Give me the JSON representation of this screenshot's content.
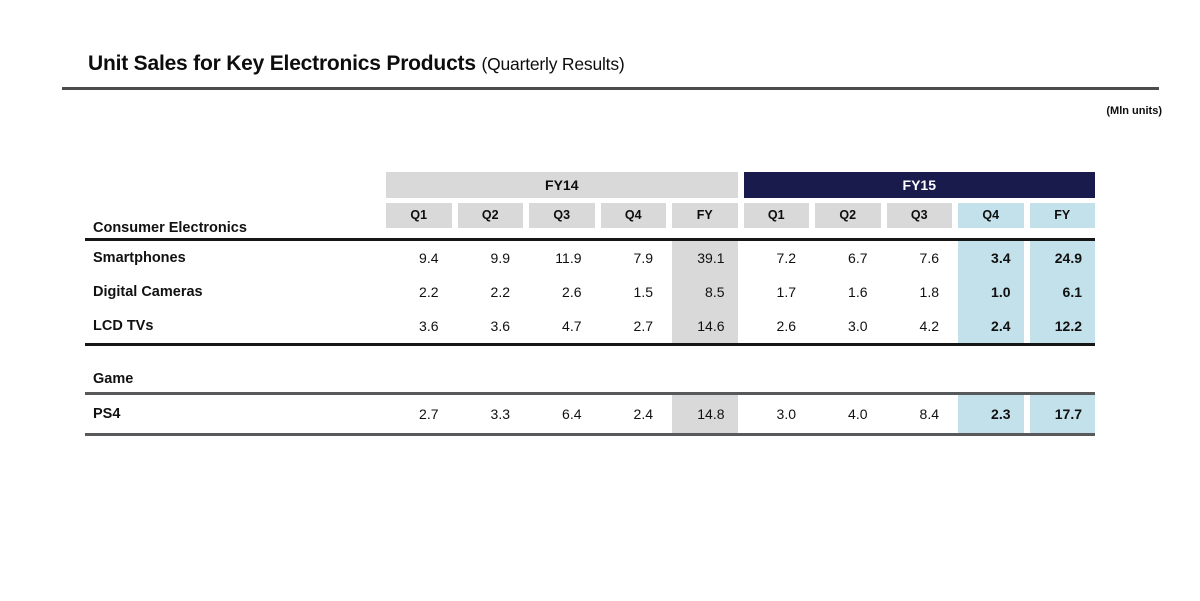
{
  "title": {
    "main": "Unit Sales for Key Electronics Products",
    "suffix": "(Quarterly Results)"
  },
  "units_note": "(Mln units)",
  "colors": {
    "navy": "#1a1b4d",
    "gray": "#d9d9d9",
    "light_blue": "#c3e1ea"
  },
  "table": {
    "year_groups": [
      {
        "label": "FY14"
      },
      {
        "label": "FY15"
      }
    ],
    "quarter_headers": [
      "Q1",
      "Q2",
      "Q3",
      "Q4",
      "FY",
      "Q1",
      "Q2",
      "Q3",
      "Q4",
      "FY"
    ],
    "highlight_columns": [
      8,
      9
    ],
    "gray_column": 4,
    "sections": [
      {
        "label": "Consumer Electronics",
        "rows": [
          {
            "label": "Smartphones",
            "values": [
              "9.4",
              "9.9",
              "11.9",
              "7.9",
              "39.1",
              "7.2",
              "6.7",
              "7.6",
              "3.4",
              "24.9"
            ]
          },
          {
            "label": "Digital Cameras",
            "values": [
              "2.2",
              "2.2",
              "2.6",
              "1.5",
              "8.5",
              "1.7",
              "1.6",
              "1.8",
              "1.0",
              "6.1"
            ]
          },
          {
            "label": "LCD TVs",
            "values": [
              "3.6",
              "3.6",
              "4.7",
              "2.7",
              "14.6",
              "2.6",
              "3.0",
              "4.2",
              "2.4",
              "12.2"
            ]
          }
        ]
      },
      {
        "label": "Game",
        "rows": [
          {
            "label": "PS4",
            "values": [
              "2.7",
              "3.3",
              "6.4",
              "2.4",
              "14.8",
              "3.0",
              "4.0",
              "8.4",
              "2.3",
              "17.7"
            ]
          }
        ]
      }
    ]
  },
  "chart_data": {
    "type": "table",
    "title": "Unit Sales for Key Electronics Products (Quarterly Results)",
    "units": "Mln units",
    "column_groups": [
      "FY14",
      "FY15"
    ],
    "columns": [
      "FY14 Q1",
      "FY14 Q2",
      "FY14 Q3",
      "FY14 Q4",
      "FY14 FY",
      "FY15 Q1",
      "FY15 Q2",
      "FY15 Q3",
      "FY15 Q4",
      "FY15 FY"
    ],
    "rows": [
      {
        "section": "Consumer Electronics",
        "name": "Smartphones",
        "values": [
          9.4,
          9.9,
          11.9,
          7.9,
          39.1,
          7.2,
          6.7,
          7.6,
          3.4,
          24.9
        ]
      },
      {
        "section": "Consumer Electronics",
        "name": "Digital Cameras",
        "values": [
          2.2,
          2.2,
          2.6,
          1.5,
          8.5,
          1.7,
          1.6,
          1.8,
          1.0,
          6.1
        ]
      },
      {
        "section": "Consumer Electronics",
        "name": "LCD TVs",
        "values": [
          3.6,
          3.6,
          4.7,
          2.7,
          14.6,
          2.6,
          3.0,
          4.2,
          2.4,
          12.2
        ]
      },
      {
        "section": "Game",
        "name": "PS4",
        "values": [
          2.7,
          3.3,
          6.4,
          2.4,
          14.8,
          3.0,
          4.0,
          8.4,
          2.3,
          17.7
        ]
      }
    ]
  }
}
